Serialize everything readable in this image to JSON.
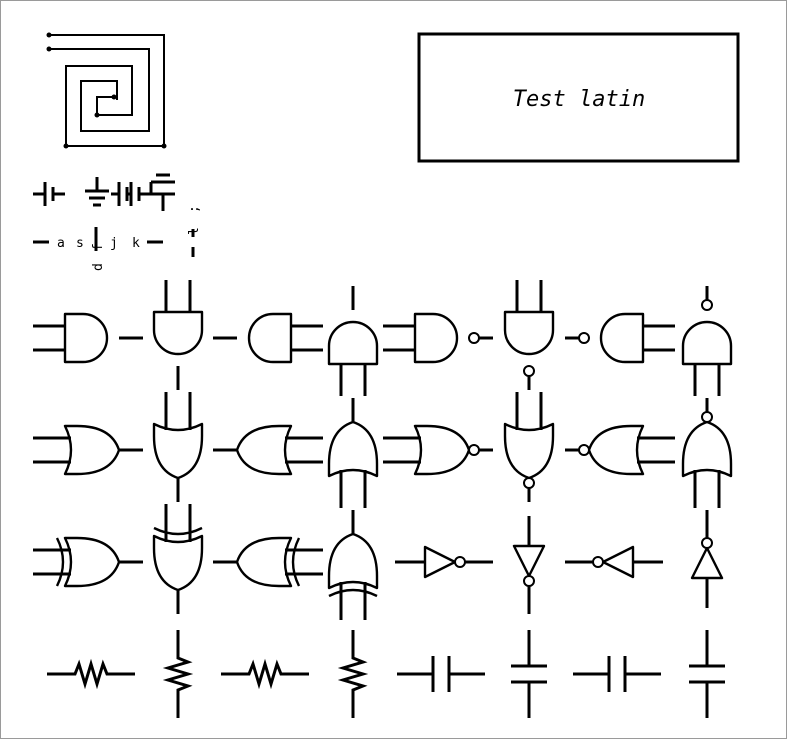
{
  "title_box": {
    "text": "Test latin"
  },
  "key_labels": [
    {
      "key": "a",
      "text": "a"
    },
    {
      "key": "s",
      "text": "s"
    },
    {
      "key": "d",
      "text": "d"
    },
    {
      "key": "f",
      "text": "f"
    },
    {
      "key": "j",
      "text": "j"
    },
    {
      "key": "k",
      "text": "k"
    },
    {
      "key": "l",
      "text": "l"
    },
    {
      "key": "semicolon",
      "text": ";"
    }
  ],
  "gate_rows": [
    [
      "and",
      "and",
      "and",
      "and",
      "nand",
      "nand",
      "nand",
      "nand"
    ],
    [
      "or",
      "or",
      "or",
      "or",
      "nor",
      "nor",
      "nor",
      "nor"
    ],
    [
      "xor",
      "xor",
      "xor",
      "xor",
      "not",
      "not",
      "not",
      "not"
    ]
  ],
  "passive_row": [
    "resistor",
    "resistor",
    "resistor",
    "resistor",
    "capacitor",
    "capacitor",
    "capacitor",
    "capacitor"
  ]
}
